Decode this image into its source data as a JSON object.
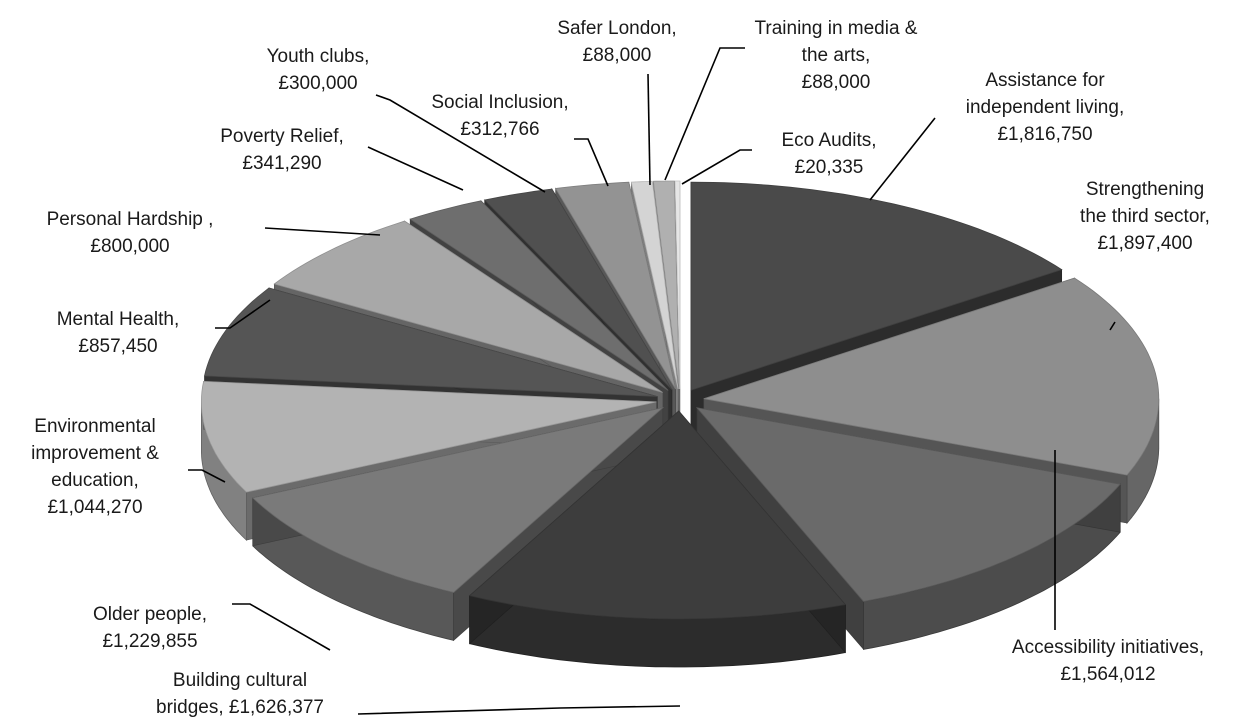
{
  "chart_data": {
    "type": "pie",
    "style": "3d-exploded",
    "legend": "none",
    "slices": [
      {
        "label": "Assistance for independent living",
        "value": 1816750,
        "display": "£1,816,750",
        "color": "#4a4a4a"
      },
      {
        "label": "Strengthening the third sector",
        "value": 1897400,
        "display": "£1,897,400",
        "color": "#8e8e8e"
      },
      {
        "label": "Accessibility initiatives",
        "value": 1564012,
        "display": "£1,564,012",
        "color": "#6a6a6a"
      },
      {
        "label": "Building cultural bridges",
        "value": 1626377,
        "display": "£1,626,377",
        "color": "#3d3d3d"
      },
      {
        "label": "Older people",
        "value": 1229855,
        "display": "£1,229,855",
        "color": "#7a7a7a"
      },
      {
        "label": "Environmental improvement & education",
        "value": 1044270,
        "display": "£1,044,270",
        "color": "#b3b3b3"
      },
      {
        "label": "Mental Health",
        "value": 857450,
        "display": "£857,450",
        "color": "#555555"
      },
      {
        "label": "Personal Hardship",
        "value": 800000,
        "display": "£800,000",
        "color": "#a8a8a8"
      },
      {
        "label": "Poverty Relief",
        "value": 341290,
        "display": "£341,290",
        "color": "#6e6e6e"
      },
      {
        "label": "Youth clubs",
        "value": 300000,
        "display": "£300,000",
        "color": "#505050"
      },
      {
        "label": "Social Inclusion",
        "value": 312766,
        "display": "£312,766",
        "color": "#939393"
      },
      {
        "label": "Safer London",
        "value": 88000,
        "display": "£88,000",
        "color": "#d4d4d4"
      },
      {
        "label": "Training in media & the arts",
        "value": 88000,
        "display": "£88,000",
        "color": "#b0b0b0"
      },
      {
        "label": "Eco Audits",
        "value": 20335,
        "display": "£20,335",
        "color": "#e6e6e6"
      }
    ],
    "label_texts": [
      [
        "Assistance for",
        "independent living,",
        "£1,816,750"
      ],
      [
        "Strengthening",
        "the third sector,",
        "£1,897,400"
      ],
      [
        "Accessibility initiatives,",
        "£1,564,012"
      ],
      [
        "Building cultural",
        "bridges,  £1,626,377"
      ],
      [
        "Older people,",
        "£1,229,855"
      ],
      [
        "Environmental",
        "improvement &",
        "education,",
        "£1,044,270"
      ],
      [
        "Mental Health,",
        "£857,450"
      ],
      [
        "Personal Hardship ,",
        "£800,000"
      ],
      [
        "Poverty Relief,",
        "£341,290"
      ],
      [
        "Youth clubs,",
        "£300,000"
      ],
      [
        "Social Inclusion,",
        "£312,766"
      ],
      [
        "Safer London,",
        "£88,000"
      ],
      [
        "Training in media &",
        "the arts,",
        "£88,000"
      ],
      [
        "Eco Audits,",
        "£20,335"
      ]
    ]
  }
}
